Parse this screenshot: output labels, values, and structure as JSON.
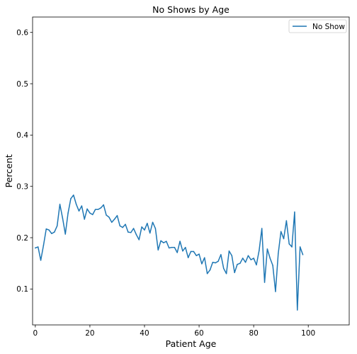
{
  "chart_data": {
    "type": "line",
    "title": "No Shows by Age",
    "xlabel": "Patient Age",
    "ylabel": "Percent",
    "xlim": [
      -1,
      115
    ],
    "ylim": [
      0.03,
      0.63
    ],
    "xticks": [
      0,
      20,
      40,
      60,
      80,
      100
    ],
    "yticks": [
      0.1,
      0.2,
      0.3,
      0.4,
      0.5,
      0.6
    ],
    "grid": false,
    "legend_position": "top-right",
    "series": [
      {
        "name": "No Show",
        "color": "#1f77b4",
        "x": [
          0,
          1,
          2,
          3,
          4,
          5,
          6,
          7,
          8,
          9,
          10,
          11,
          12,
          13,
          14,
          15,
          16,
          17,
          18,
          19,
          20,
          21,
          22,
          23,
          24,
          25,
          26,
          27,
          28,
          29,
          30,
          31,
          32,
          33,
          34,
          35,
          36,
          37,
          38,
          39,
          40,
          41,
          42,
          43,
          44,
          45,
          46,
          47,
          48,
          49,
          50,
          51,
          52,
          53,
          54,
          55,
          56,
          57,
          58,
          59,
          60,
          61,
          62,
          63,
          64,
          65,
          66,
          67,
          68,
          69,
          70,
          71,
          72,
          73,
          74,
          75,
          76,
          77,
          78,
          79,
          80,
          81,
          82,
          83,
          84,
          85,
          86,
          87,
          88,
          89,
          90,
          91,
          92,
          93,
          94,
          95,
          96,
          97,
          98
        ],
        "y": [
          0.18,
          0.182,
          0.156,
          0.185,
          0.217,
          0.215,
          0.208,
          0.211,
          0.223,
          0.265,
          0.238,
          0.207,
          0.248,
          0.276,
          0.283,
          0.265,
          0.252,
          0.262,
          0.236,
          0.256,
          0.248,
          0.245,
          0.255,
          0.255,
          0.258,
          0.264,
          0.244,
          0.24,
          0.23,
          0.236,
          0.243,
          0.223,
          0.22,
          0.226,
          0.211,
          0.21,
          0.218,
          0.206,
          0.196,
          0.221,
          0.215,
          0.228,
          0.209,
          0.23,
          0.218,
          0.176,
          0.194,
          0.19,
          0.193,
          0.18,
          0.181,
          0.181,
          0.171,
          0.193,
          0.174,
          0.181,
          0.161,
          0.173,
          0.173,
          0.165,
          0.168,
          0.149,
          0.161,
          0.13,
          0.137,
          0.152,
          0.151,
          0.154,
          0.167,
          0.14,
          0.13,
          0.174,
          0.165,
          0.132,
          0.148,
          0.15,
          0.16,
          0.152,
          0.165,
          0.157,
          0.16,
          0.147,
          0.175,
          0.218,
          0.113,
          0.178,
          0.16,
          0.146,
          0.095,
          0.169,
          0.212,
          0.198,
          0.233,
          0.188,
          0.182,
          0.25,
          0.059,
          0.182,
          0.167
        ]
      }
    ]
  }
}
